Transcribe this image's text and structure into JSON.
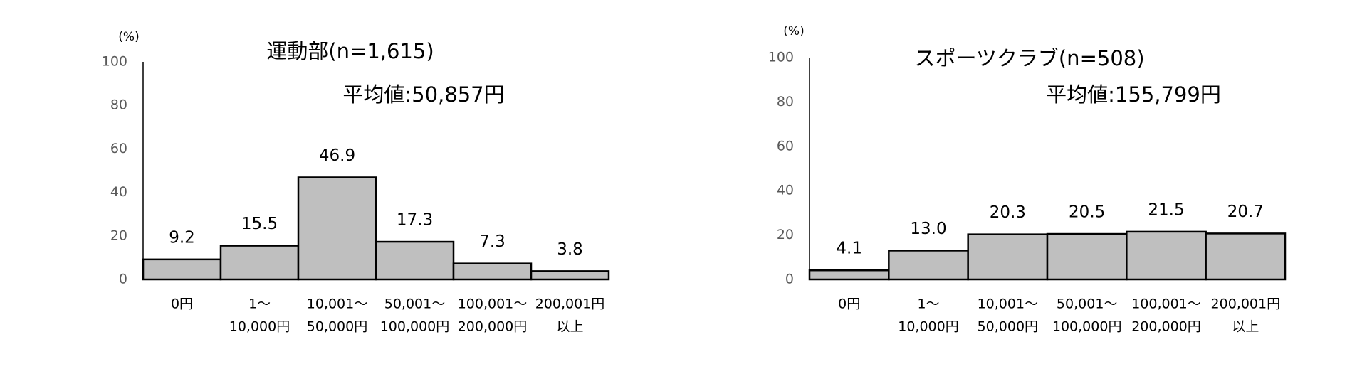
{
  "chart_data": [
    {
      "type": "bar",
      "title": "運動部(n=1,615)",
      "subtitle": "平均値:50,857円",
      "y_unit": "(%)",
      "categories": [
        [
          "0円"
        ],
        [
          "1～",
          "10,000円"
        ],
        [
          "10,001～",
          "50,000円"
        ],
        [
          "50,001～",
          "100,000円"
        ],
        [
          "100,001～",
          "200,000円"
        ],
        [
          "200,001円",
          "以上"
        ]
      ],
      "values": [
        9.2,
        15.5,
        46.9,
        17.3,
        7.3,
        3.8
      ],
      "value_labels": [
        "9.2",
        "15.5",
        "46.9",
        "17.3",
        "7.3",
        "3.8"
      ],
      "color": "#bfbfbf",
      "ylim": [
        0,
        100
      ],
      "yticks": [
        0,
        20,
        40,
        60,
        80,
        100
      ]
    },
    {
      "type": "bar",
      "title": "スポーツクラブ(n=508)",
      "subtitle": "平均値:155,799円",
      "y_unit": "(%)",
      "categories": [
        [
          "0円"
        ],
        [
          "1～",
          "10,000円"
        ],
        [
          "10,001～",
          "50,000円"
        ],
        [
          "50,001～",
          "100,000円"
        ],
        [
          "100,001～",
          "200,000円"
        ],
        [
          "200,001円",
          "以上"
        ]
      ],
      "values": [
        4.1,
        13.0,
        20.3,
        20.5,
        21.5,
        20.7
      ],
      "value_labels": [
        "4.1",
        "13.0",
        "20.3",
        "20.5",
        "21.5",
        "20.7"
      ],
      "color": "#bfbfbf",
      "ylim": [
        0,
        100
      ],
      "yticks": [
        0,
        20,
        40,
        60,
        80,
        100
      ]
    }
  ]
}
